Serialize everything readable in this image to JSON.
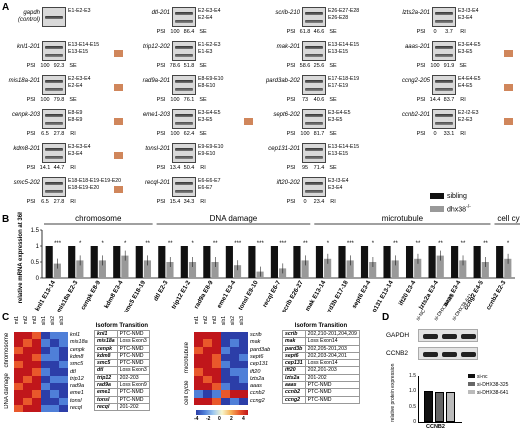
{
  "panels": {
    "a": "A",
    "b": "B",
    "c": "C",
    "d": "D"
  },
  "panel_a": {
    "psi_label": "PSI",
    "columns": [
      [
        {
          "gene": "gapdh (control)",
          "exons": [
            "E1-E2-E3"
          ],
          "psi": [
            "",
            ""
          ],
          "type": "",
          "bands": 1,
          "orange": false
        },
        {
          "gene": "knl1-201",
          "exons": [
            "E13-E14-E15",
            "E13-E15"
          ],
          "psi": [
            "100",
            "92.3"
          ],
          "type": "SE",
          "bands": 2,
          "orange": true
        },
        {
          "gene": "mis18a-201",
          "exons": [
            "E2-E3-E4",
            "E2-E4"
          ],
          "psi": [
            "100",
            "79.8"
          ],
          "type": "SE",
          "bands": 2,
          "orange": true
        },
        {
          "gene": "cenpk-203",
          "exons": [
            "E8-E9",
            "E8-E9"
          ],
          "psi": [
            "6.5",
            "27.8"
          ],
          "type": "RI",
          "bands": 2,
          "orange": true
        },
        {
          "gene": "kdm8-201",
          "exons": [
            "E3-E3-E4",
            "E3-E4"
          ],
          "psi": [
            "14.1",
            "44.7"
          ],
          "type": "RI",
          "bands": 2,
          "orange": true
        },
        {
          "gene": "smc5-202",
          "exons": [
            "E18-E18-E19-E19-E20",
            "E18-E19-E20"
          ],
          "psi": [
            "6.5",
            "27.8"
          ],
          "type": "RI",
          "bands": 2,
          "orange": true
        }
      ],
      [
        {
          "gene": "dtl-201",
          "exons": [
            "E2-E3-E4",
            "E2-E4"
          ],
          "psi": [
            "100",
            "86.4"
          ],
          "type": "SE",
          "bands": 2,
          "orange": false
        },
        {
          "gene": "trip12-202",
          "exons": [
            "E1-E2-E3",
            "E1-E3"
          ],
          "psi": [
            "78.6",
            "51.8"
          ],
          "type": "SE",
          "bands": 2,
          "orange": false
        },
        {
          "gene": "rad9a-201",
          "exons": [
            "E8-E9-E10",
            "E8-E10"
          ],
          "psi": [
            "100",
            "76.1"
          ],
          "type": "SE",
          "bands": 2,
          "orange": false
        },
        {
          "gene": "eme1-203",
          "exons": [
            "E3-E4-E5",
            "E3-E5"
          ],
          "psi": [
            "100",
            "62.4"
          ],
          "type": "SE",
          "bands": 2,
          "orange": true
        },
        {
          "gene": "tonsl-201",
          "exons": [
            "E9-E9-E10",
            "E9-E10"
          ],
          "psi": [
            "13.4",
            "50.4"
          ],
          "type": "RI",
          "bands": 2,
          "orange": false
        },
        {
          "gene": "recql-201",
          "exons": [
            "E6-E6-E7",
            "E6-E7"
          ],
          "psi": [
            "15.4",
            "34.3"
          ],
          "type": "RI",
          "bands": 2,
          "orange": false
        }
      ],
      [
        {
          "gene": "scrib-210",
          "exons": [
            "E26-E27-E28",
            "E26-E28"
          ],
          "psi": [
            "61.8",
            "46.6"
          ],
          "type": "SE",
          "bands": 2,
          "orange": false
        },
        {
          "gene": "mak-201",
          "exons": [
            "E13-E14-E15",
            "E13-E15"
          ],
          "psi": [
            "58.6",
            "25.6"
          ],
          "type": "SE",
          "bands": 2,
          "orange": false
        },
        {
          "gene": "pard3ab-202",
          "exons": [
            "E17-E18-E19",
            "E17-E19"
          ],
          "psi": [
            "73",
            "40.6"
          ],
          "type": "SE",
          "bands": 2,
          "orange": false
        },
        {
          "gene": "sept6-202",
          "exons": [
            "E3-E4-E5",
            "E3-E5"
          ],
          "psi": [
            "100",
            "81.7"
          ],
          "type": "SE",
          "bands": 2,
          "orange": false
        },
        {
          "gene": "cep131-201",
          "exons": [
            "E13-E14-E15",
            "E13-E15"
          ],
          "psi": [
            "95",
            "71.4"
          ],
          "type": "SE",
          "bands": 2,
          "orange": false
        },
        {
          "gene": "ift20-202",
          "exons": [
            "E3-I3-E4",
            "E3-E4"
          ],
          "psi": [
            "0",
            "23.4"
          ],
          "type": "RI",
          "bands": 2,
          "orange": false
        }
      ],
      [
        {
          "gene": "lzts2a-201",
          "exons": [
            "E3-I3-E4",
            "E3-E4"
          ],
          "psi": [
            "0",
            "3.7"
          ],
          "type": "RI",
          "bands": 2,
          "orange": false
        },
        {
          "gene": "aaas-201",
          "exons": [
            "E3-E4-E5",
            "E3-E5"
          ],
          "psi": [
            "100",
            "91.9"
          ],
          "type": "SE",
          "bands": 2,
          "orange": true
        },
        {
          "gene": "ccng2-205",
          "exons": [
            "E4-E4-E5",
            "E4-E5"
          ],
          "psi": [
            "14.4",
            "83.7"
          ],
          "type": "RI",
          "bands": 2,
          "orange": true
        },
        {
          "gene": "ccnb2-201",
          "exons": [
            "E2-I2-E3",
            "E2-E3"
          ],
          "psi": [
            "0",
            "33.1"
          ],
          "type": "RI",
          "bands": 2,
          "orange": true
        }
      ]
    ],
    "legend": [
      {
        "label": "sibling",
        "color": "#111111"
      },
      {
        "label": "dhx38",
        "sup": "-/-",
        "color": "#999999"
      }
    ]
  },
  "chart_data": {
    "type": "bar",
    "ylabel": "relative mRNA expression at 36hpf",
    "ylim": [
      0,
      1.5
    ],
    "yticks": [
      0,
      0.5,
      1,
      1.5
    ],
    "groups": [
      {
        "label": "chromosome",
        "start": 0,
        "end": 4
      },
      {
        "label": "DNA damage",
        "start": 5,
        "end": 11
      },
      {
        "label": "microtubule",
        "start": 12,
        "end": 19
      },
      {
        "label": "cell cycle kinase",
        "start": 20,
        "end": 22
      }
    ],
    "categories": [
      "knl1 E13-14",
      "mis18a E2-3",
      "cenpk E8-9",
      "kdm8 E3-4",
      "smc5 E18-19",
      "dtl E2-3",
      "trip12 E1-2",
      "rad9a E8-9",
      "eme1 E3-4",
      "tonsl E9-10",
      "recql E6-7",
      "scrib E26-27",
      "mak E13-14",
      "pard3b E17-18",
      "sept6 E3-4",
      "cep131 E13-14",
      "ift20 E3-4",
      "lzts2a E3-4",
      "aaas E3-4",
      "ccng2 E4-5",
      "ccnb2 E2-3"
    ],
    "series": [
      {
        "name": "sibling",
        "values": [
          1,
          1,
          1,
          1,
          1,
          1,
          1,
          1,
          1,
          1,
          1,
          1,
          1,
          1,
          1,
          1,
          1,
          1,
          1,
          1,
          1
        ]
      },
      {
        "name": "dhx38",
        "values": [
          0.45,
          0.55,
          0.55,
          0.7,
          0.55,
          0.5,
          0.5,
          0.5,
          0.4,
          0.2,
          0.3,
          0.55,
          0.6,
          0.55,
          0.5,
          0.55,
          0.6,
          0.7,
          0.55,
          0.5,
          0.6
        ]
      }
    ],
    "significance": [
      "***",
      "*",
      "*",
      "*",
      "**",
      "**",
      "*",
      "**",
      "***",
      "***",
      "***",
      "**",
      "*",
      "***",
      "*",
      "**",
      "**",
      "**",
      "**",
      "**",
      "*"
    ]
  },
  "panel_c": {
    "columns": [
      "mt1",
      "mt2",
      "mt3",
      "sib1",
      "sib2",
      "sib3"
    ],
    "left_groups": [
      {
        "label": "chromosome",
        "rows": 5
      },
      {
        "label": "DNA damage",
        "rows": 6
      }
    ],
    "left_genes": [
      "knl1",
      "mis18a",
      "cenpk",
      "kdm8",
      "smc5",
      "dtl",
      "trip12",
      "rad9a",
      "eme1",
      "tonsl",
      "recql"
    ],
    "left_table": {
      "title": "Isoform Transition",
      "rows": [
        [
          "knl1",
          "PTC-NMD"
        ],
        [
          "mis18a",
          "Loss Exon3"
        ],
        [
          "cenpk",
          "PTC-NMD"
        ],
        [
          "kdm8",
          "PTC-NMD"
        ],
        [
          "smc5",
          "PTC-NMD"
        ],
        [
          "dtl",
          "Loss Exon3"
        ],
        [
          "trip12",
          "202-203"
        ],
        [
          "rad9a",
          "Loss Exon9"
        ],
        [
          "eme1",
          "PTC-NMD"
        ],
        [
          "tonsl",
          "PTC-NMD"
        ],
        [
          "recql",
          "201-202"
        ]
      ]
    },
    "right_groups": [
      {
        "label": "microtubule",
        "rows": 7
      },
      {
        "label": "cell cycle",
        "rows": 3
      }
    ],
    "right_genes": [
      "scrib",
      "mak",
      "pard3ab",
      "sept6",
      "cep131",
      "ift20",
      "lzts2a",
      "aaas",
      "ccnb2",
      "ccng2"
    ],
    "right_table": {
      "title": "Isoform Transition",
      "rows": [
        [
          "scrib",
          "202,210-201,204,209"
        ],
        [
          "mak",
          "Loss Exon14"
        ],
        [
          "pard3b",
          "202,205-201,203"
        ],
        [
          "sept6",
          "202,203-204,201"
        ],
        [
          "cep131",
          "Loss Exon14"
        ],
        [
          "ift20",
          "202,201-203"
        ],
        [
          "lzts2a",
          "201-202"
        ],
        [
          "aaas",
          "PTC-NMD"
        ],
        [
          "ccnb2",
          "PTC-NMD"
        ],
        [
          "ccng2",
          "PTC-NMD"
        ]
      ]
    },
    "scale_ticks": [
      "-4",
      "-2",
      "0",
      "2",
      "4"
    ]
  },
  "panel_d": {
    "lanes": [
      "si-NC",
      "si-DHX38-325",
      "si-DHX38-641"
    ],
    "bands": [
      "GAPDH",
      "CCNB2"
    ],
    "ylabel": "relative protein expression",
    "yticks": [
      "0",
      "0.5",
      "1.0",
      "1.5"
    ],
    "values": [
      1.0,
      0.98,
      0.97
    ],
    "xlabel": "CCNB2",
    "legend": [
      "si-nc",
      "si-DHX38-325",
      "si-DHX38-641"
    ],
    "legend_colors": [
      "#111111",
      "#666666",
      "#bbbbbb"
    ]
  }
}
